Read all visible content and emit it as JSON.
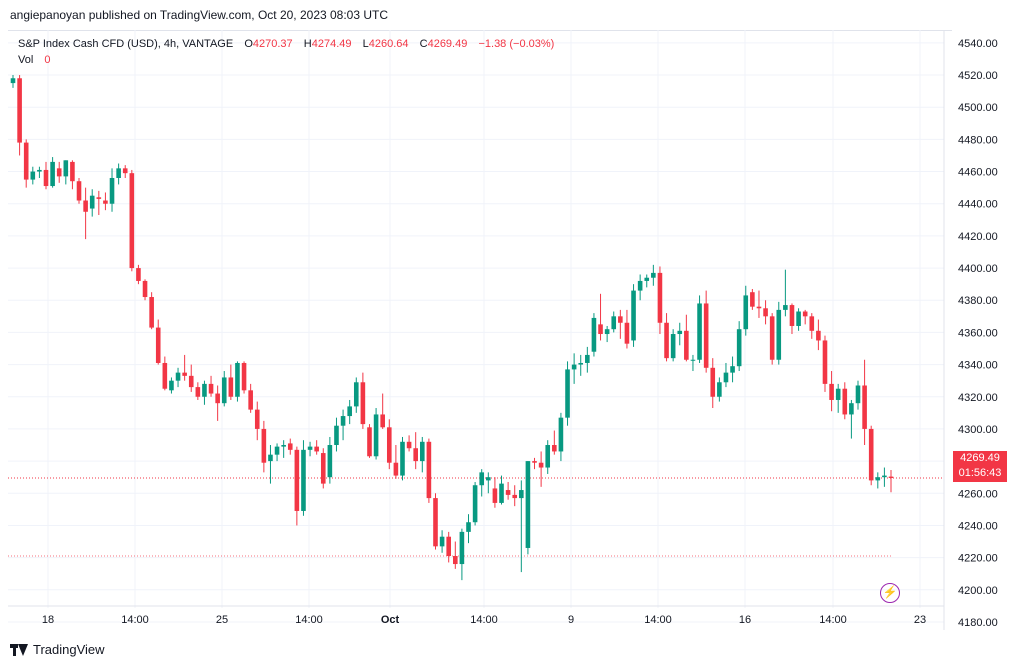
{
  "header": {
    "published": "angiepanoyan published on TradingView.com, Oct 20, 2023 08:03 UTC"
  },
  "legend": {
    "symbol": "S&P Index Cash CFD (USD), 4h, VANTAGE",
    "o_key": "O",
    "o_val": "4270.37",
    "h_key": "H",
    "h_val": "4274.49",
    "l_key": "L",
    "l_val": "4260.64",
    "c_key": "C",
    "c_val": "4269.49",
    "change": "−1.38 (−0.03%)",
    "vol_key": "Vol",
    "vol_val": "0"
  },
  "price_tag": {
    "price": "4269.49",
    "countdown": "01:56:43"
  },
  "brand": {
    "name": "TradingView"
  },
  "colors": {
    "up": "#089981",
    "down": "#f23645",
    "grid": "#f0f3fa",
    "text": "#131722"
  },
  "chart_data": {
    "type": "candlestick",
    "title": "S&P Index Cash CFD (USD), 4h, VANTAGE",
    "ylim": [
      4175,
      4548
    ],
    "y_ticks": [
      "4540.00",
      "4520.00",
      "4500.00",
      "4480.00",
      "4460.00",
      "4440.00",
      "4420.00",
      "4400.00",
      "4380.00",
      "4360.00",
      "4340.00",
      "4320.00",
      "4300.00",
      "4280.00",
      "4260.00",
      "4240.00",
      "4220.00",
      "4200.00",
      "4180.00"
    ],
    "x_ticks": [
      "18",
      "14:00",
      "25",
      "14:00",
      "Oct",
      "14:00",
      "9",
      "14:00",
      "16",
      "14:00",
      "23"
    ],
    "last_price": 4269.49,
    "marked_level": 4221,
    "ohlc": [
      [
        4515,
        4520,
        4512,
        4518
      ],
      [
        4518,
        4520,
        4470,
        4478
      ],
      [
        4478,
        4480,
        4450,
        4455
      ],
      [
        4455,
        4463,
        4452,
        4460
      ],
      [
        4460,
        4463,
        4456,
        4461
      ],
      [
        4461,
        4466,
        4449,
        4451
      ],
      [
        4451,
        4469,
        4450,
        4466
      ],
      [
        4462,
        4466,
        4453,
        4457
      ],
      [
        4457,
        4467,
        4452,
        4467
      ],
      [
        4466,
        4467,
        4449,
        4454
      ],
      [
        4454,
        4456,
        4440,
        4442
      ],
      [
        4442,
        4450,
        4418,
        4435
      ],
      [
        4437,
        4449,
        4432,
        4445
      ],
      [
        4444,
        4448,
        4433,
        4443
      ],
      [
        4442,
        4447,
        4436,
        4440
      ],
      [
        4440,
        4462,
        4435,
        4456
      ],
      [
        4456,
        4465,
        4452,
        4462
      ],
      [
        4462,
        4464,
        4456,
        4459
      ],
      [
        4459,
        4461,
        4398,
        4400
      ],
      [
        4400,
        4402,
        4390,
        4392
      ],
      [
        4392,
        4393,
        4380,
        4382
      ],
      [
        4382,
        4385,
        4362,
        4363
      ],
      [
        4363,
        4368,
        4340,
        4341
      ],
      [
        4341,
        4345,
        4324,
        4325
      ],
      [
        4324,
        4332,
        4322,
        4330
      ],
      [
        4330,
        4338,
        4326,
        4335
      ],
      [
        4335,
        4346,
        4330,
        4333
      ],
      [
        4333,
        4340,
        4323,
        4326
      ],
      [
        4326,
        4329,
        4318,
        4320
      ],
      [
        4320,
        4330,
        4315,
        4328
      ],
      [
        4328,
        4333,
        4320,
        4322
      ],
      [
        4322,
        4327,
        4305,
        4316
      ],
      [
        4316,
        4336,
        4314,
        4332
      ],
      [
        4332,
        4340,
        4318,
        4320
      ],
      [
        4320,
        4342,
        4317,
        4341
      ],
      [
        4341,
        4342,
        4322,
        4324
      ],
      [
        4324,
        4328,
        4310,
        4312
      ],
      [
        4312,
        4317,
        4293,
        4300
      ],
      [
        4300,
        4305,
        4273,
        4279
      ],
      [
        4280,
        4290,
        4266,
        4284
      ],
      [
        4284,
        4291,
        4280,
        4289
      ],
      [
        4289,
        4293,
        4282,
        4290
      ],
      [
        4291,
        4294,
        4284,
        4287
      ],
      [
        4287,
        4289,
        4240,
        4249
      ],
      [
        4249,
        4293,
        4246,
        4287
      ],
      [
        4287,
        4292,
        4283,
        4289
      ],
      [
        4289,
        4293,
        4284,
        4286
      ],
      [
        4285,
        4288,
        4263,
        4266
      ],
      [
        4270,
        4295,
        4266,
        4290
      ],
      [
        4290,
        4307,
        4286,
        4302
      ],
      [
        4302,
        4312,
        4293,
        4308
      ],
      [
        4308,
        4318,
        4303,
        4314
      ],
      [
        4314,
        4332,
        4310,
        4329
      ],
      [
        4329,
        4335,
        4300,
        4303
      ],
      [
        4301,
        4303,
        4282,
        4283
      ],
      [
        4283,
        4313,
        4281,
        4309
      ],
      [
        4309,
        4322,
        4300,
        4301
      ],
      [
        4301,
        4306,
        4275,
        4279
      ],
      [
        4279,
        4290,
        4269,
        4271
      ],
      [
        4271,
        4295,
        4268,
        4292
      ],
      [
        4292,
        4296,
        4286,
        4288
      ],
      [
        4288,
        4298,
        4275,
        4280
      ],
      [
        4280,
        4295,
        4273,
        4292
      ],
      [
        4292,
        4294,
        4254,
        4257
      ],
      [
        4257,
        4260,
        4225,
        4227
      ],
      [
        4227,
        4237,
        4223,
        4233
      ],
      [
        4233,
        4236,
        4217,
        4221
      ],
      [
        4221,
        4230,
        4213,
        4216
      ],
      [
        4216,
        4238,
        4206,
        4236
      ],
      [
        4236,
        4247,
        4229,
        4242
      ],
      [
        4242,
        4267,
        4240,
        4265
      ],
      [
        4265,
        4275,
        4258,
        4273
      ],
      [
        4268,
        4273,
        4260,
        4270
      ],
      [
        4263,
        4270,
        4251,
        4254
      ],
      [
        4254,
        4271,
        4253,
        4266
      ],
      [
        4262,
        4267,
        4256,
        4259
      ],
      [
        4259,
        4265,
        4252,
        4257
      ],
      [
        4257,
        4268,
        4211,
        4262
      ],
      [
        4226,
        4280,
        4222,
        4280
      ],
      [
        4280,
        4282,
        4275,
        4279
      ],
      [
        4279,
        4286,
        4264,
        4276
      ],
      [
        4276,
        4293,
        4272,
        4290
      ],
      [
        4290,
        4299,
        4284,
        4286
      ],
      [
        4286,
        4310,
        4280,
        4307
      ],
      [
        4307,
        4342,
        4302,
        4337
      ],
      [
        4337,
        4347,
        4328,
        4340
      ],
      [
        4340,
        4346,
        4333,
        4341
      ],
      [
        4341,
        4351,
        4335,
        4346
      ],
      [
        4348,
        4372,
        4345,
        4369
      ],
      [
        4365,
        4384,
        4355,
        4359
      ],
      [
        4359,
        4364,
        4354,
        4362
      ],
      [
        4362,
        4373,
        4360,
        4370
      ],
      [
        4370,
        4374,
        4356,
        4366
      ],
      [
        4366,
        4374,
        4350,
        4353
      ],
      [
        4355,
        4390,
        4351,
        4386
      ],
      [
        4386,
        4396,
        4380,
        4392
      ],
      [
        4392,
        4396,
        4388,
        4394
      ],
      [
        4394,
        4402,
        4389,
        4397
      ],
      [
        4397,
        4401,
        4359,
        4366
      ],
      [
        4366,
        4372,
        4342,
        4344
      ],
      [
        4344,
        4362,
        4342,
        4359
      ],
      [
        4359,
        4366,
        4352,
        4361
      ],
      [
        4361,
        4371,
        4342,
        4343
      ],
      [
        4343,
        4346,
        4336,
        4343
      ],
      [
        4343,
        4383,
        4341,
        4378
      ],
      [
        4378,
        4386,
        4335,
        4338
      ],
      [
        4338,
        4344,
        4313,
        4320
      ],
      [
        4320,
        4332,
        4317,
        4329
      ],
      [
        4329,
        4341,
        4326,
        4335
      ],
      [
        4335,
        4345,
        4329,
        4339
      ],
      [
        4339,
        4367,
        4336,
        4362
      ],
      [
        4362,
        4389,
        4358,
        4383
      ],
      [
        4385,
        4387,
        4374,
        4376
      ],
      [
        4376,
        4386,
        4369,
        4375
      ],
      [
        4375,
        4380,
        4365,
        4370
      ],
      [
        4370,
        4372,
        4340,
        4343
      ],
      [
        4343,
        4379,
        4340,
        4374
      ],
      [
        4374,
        4399,
        4370,
        4377
      ],
      [
        4377,
        4378,
        4359,
        4364
      ],
      [
        4364,
        4375,
        4361,
        4373
      ],
      [
        4373,
        4374,
        4365,
        4370
      ],
      [
        4370,
        4372,
        4356,
        4361
      ],
      [
        4361,
        4368,
        4349,
        4355
      ],
      [
        4355,
        4358,
        4323,
        4328
      ],
      [
        4328,
        4336,
        4311,
        4318
      ],
      [
        4318,
        4328,
        4310,
        4325
      ],
      [
        4325,
        4329,
        4306,
        4309
      ],
      [
        4309,
        4318,
        4294,
        4316
      ],
      [
        4316,
        4330,
        4312,
        4327
      ],
      [
        4327,
        4343,
        4290,
        4300
      ],
      [
        4300,
        4302,
        4265,
        4268
      ],
      [
        4268,
        4273,
        4263,
        4270
      ],
      [
        4270,
        4276,
        4264,
        4271
      ],
      [
        4270.37,
        4274.49,
        4260.64,
        4269.49
      ]
    ]
  }
}
